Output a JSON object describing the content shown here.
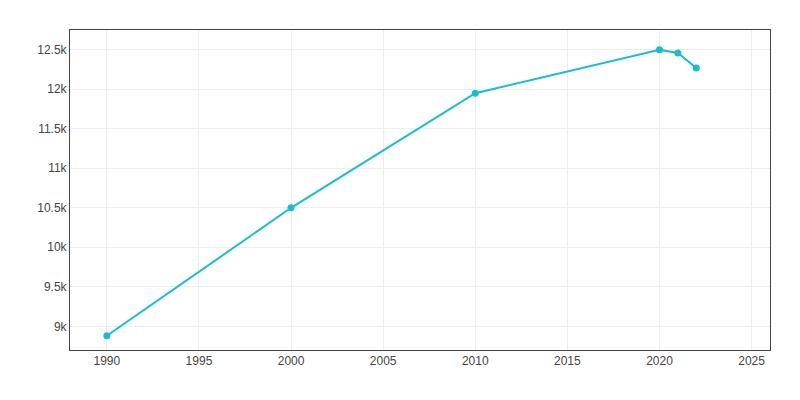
{
  "chart_data": {
    "type": "line",
    "x": [
      1990,
      2000,
      2010,
      2020,
      2021,
      2022
    ],
    "values": [
      8880,
      10500,
      11950,
      12500,
      12460,
      12270
    ],
    "color": "#17BECF",
    "marker": "circle",
    "xlim": [
      1988,
      2026
    ],
    "ylim": [
      8700,
      12750
    ],
    "xticks": [
      1990,
      1995,
      2000,
      2005,
      2010,
      2015,
      2020,
      2025
    ],
    "yticks": [
      {
        "value": 9000,
        "label": "9k"
      },
      {
        "value": 9500,
        "label": "9.5k"
      },
      {
        "value": 10000,
        "label": "10k"
      },
      {
        "value": 10500,
        "label": "10.5k"
      },
      {
        "value": 11000,
        "label": "11k"
      },
      {
        "value": 11500,
        "label": "11.5k"
      },
      {
        "value": 12000,
        "label": "12k"
      },
      {
        "value": 12500,
        "label": "12.5k"
      }
    ],
    "grid": true
  }
}
